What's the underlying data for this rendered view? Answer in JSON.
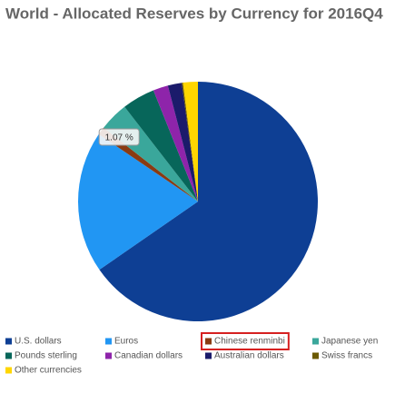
{
  "chart_data": {
    "type": "pie",
    "title": "World - Allocated Reserves by Currency for 2016Q4",
    "categories": [
      "U.S. dollars",
      "Euros",
      "Chinese renminbi",
      "Japanese yen",
      "Pounds sterling",
      "Canadian dollars",
      "Australian dollars",
      "Swiss francs",
      "Other currencies"
    ],
    "values": [
      65.36,
      19.13,
      1.07,
      3.95,
      4.43,
      2.02,
      1.88,
      0.16,
      2.0
    ],
    "value_labels": [
      null,
      null,
      "1.07 %",
      null,
      null,
      null,
      null,
      null,
      null
    ],
    "colors": [
      "#0e3f94",
      "#2196f3",
      "#8a3b12",
      "#3aa79b",
      "#07665a",
      "#8e24aa",
      "#1b1b6b",
      "#6b5a00",
      "#ffd600"
    ],
    "highlighted_index": 2
  }
}
